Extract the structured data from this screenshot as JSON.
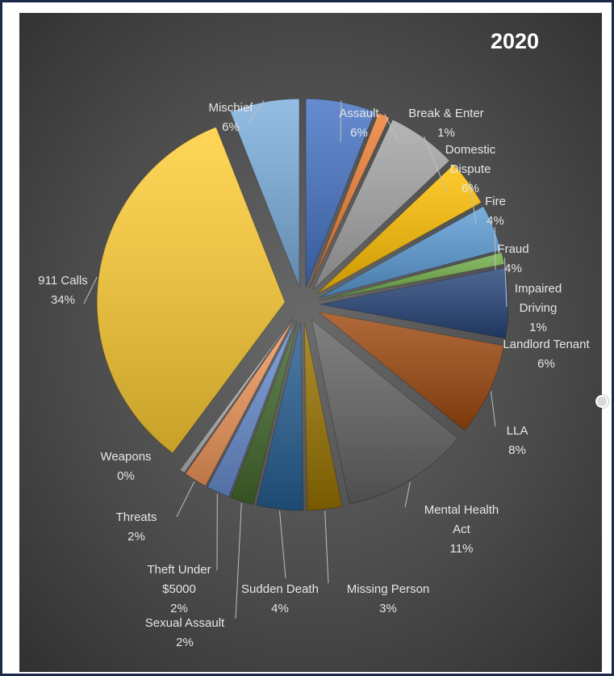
{
  "chart_data": {
    "type": "pie",
    "title": "2020",
    "exploded": true,
    "data_labels": "category and percent",
    "legend": "none",
    "categories": [
      "Assault",
      "Break & Enter",
      "Domestic Dispute",
      "Fire",
      "Fraud",
      "Impaired Driving",
      "Landlord Tenant",
      "LLA",
      "Mental Health Act",
      "Missing Person",
      "Sudden Death",
      "Sexual Assault",
      "Theft Under $5000",
      "Threats",
      "Weapons",
      "911 Calls",
      "Mischief"
    ],
    "values": [
      6,
      1,
      6,
      4,
      4,
      1,
      6,
      8,
      11,
      3,
      4,
      2,
      2,
      2,
      0,
      34,
      6
    ],
    "percent_labels": [
      "6%",
      "1%",
      "6%",
      "4%",
      "4%",
      "1%",
      "6%",
      "8%",
      "11%",
      "3%",
      "4%",
      "2%",
      "2%",
      "2%",
      "0%",
      "34%",
      "6%"
    ],
    "label_lines": [
      [
        "Assault"
      ],
      [
        "Break & Enter"
      ],
      [
        "Domestic",
        "Dispute"
      ],
      [
        "Fire"
      ],
      [
        "Fraud"
      ],
      [
        "Impaired",
        "Driving"
      ],
      [
        "Landlord Tenant"
      ],
      [
        "LLA"
      ],
      [
        "Mental Health",
        "Act"
      ],
      [
        "Missing Person"
      ],
      [
        "Sudden Death"
      ],
      [
        "Sexual Assault"
      ],
      [
        "Theft Under",
        "$5000"
      ],
      [
        "Threats"
      ],
      [
        "Weapons"
      ],
      [
        "911 Calls"
      ],
      [
        "Mischief"
      ]
    ],
    "colors": [
      "#4472c4",
      "#ed7d31",
      "#a5a5a5",
      "#ffc000",
      "#5b9bd5",
      "#70ad47",
      "#264478",
      "#9e480e",
      "#636363",
      "#997300",
      "#255e91",
      "#43682b",
      "#698ed0",
      "#f1975a",
      "#b7b7b7",
      "#ffcd33",
      "#7cafdd"
    ]
  }
}
